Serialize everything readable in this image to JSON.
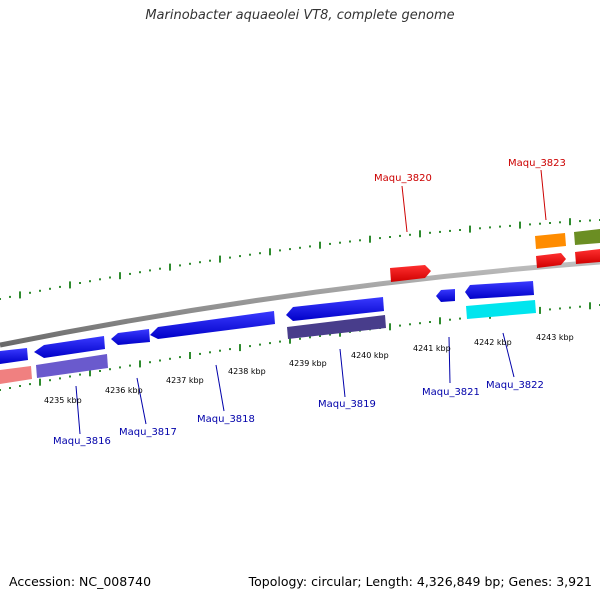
{
  "title": "Marinobacter aquaeolei VT8, complete genome",
  "footer": {
    "accession": "Accession: NC_008740",
    "summary": "Topology: circular; Length: 4,326,849 bp; Genes: 3,921"
  },
  "colors": {
    "backbone": "#8a8a8a",
    "tick": "#2e8b2e",
    "top_strand_label": "#cc0000",
    "bottom_strand_label": "#0000aa"
  },
  "scale_labels": [
    "4235 kbp",
    "4236 kbp",
    "4237 kbp",
    "4238 kbp",
    "4239 kbp",
    "4240 kbp",
    "4241 kbp",
    "4242 kbp",
    "4243 kbp"
  ],
  "gene_labels": {
    "top": [
      "Maqu_3820",
      "Maqu_3823"
    ],
    "bottom": [
      "Maqu_3816",
      "Maqu_3817",
      "Maqu_3818",
      "Maqu_3819",
      "Maqu_3821",
      "Maqu_3822"
    ]
  }
}
